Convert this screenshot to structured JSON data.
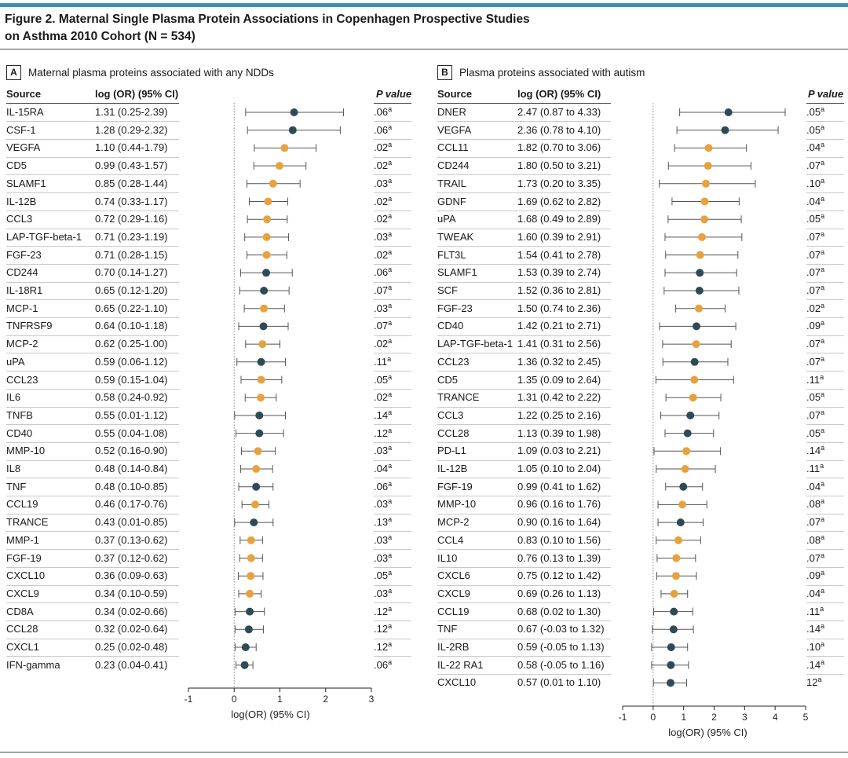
{
  "figure": {
    "title_line1": "Figure 2. Maternal Single Plasma Protein Associations in Copenhagen Prospective Studies",
    "title_line2": "on Asthma 2010 Cohort (N = 534)"
  },
  "colors": {
    "accent_bar": "#3d8fb8",
    "dot_dark": "#2e4a57",
    "dot_orange": "#e8a13c",
    "whisker": "#555555",
    "zero_line": "#888888"
  },
  "chart_data": [
    {
      "type": "forest",
      "panel": "A",
      "title": "Maternal plasma proteins associated with any NDDs",
      "col_source": "Source",
      "col_estimate": "log (OR) (95% CI)",
      "col_p": "P value",
      "xlabel": "log(OR) (95% CI)",
      "xlim": [
        -1,
        3
      ],
      "xticks": [
        -1,
        0,
        1,
        2,
        3
      ],
      "rows": [
        {
          "source": "IL-15RA",
          "ci_text": "1.31 (0.25-2.39)",
          "est": 1.31,
          "lo": 0.25,
          "hi": 2.39,
          "p": ".06",
          "sup": "a",
          "color": "dark"
        },
        {
          "source": "CSF-1",
          "ci_text": "1.28 (0.29-2.32)",
          "est": 1.28,
          "lo": 0.29,
          "hi": 2.32,
          "p": ".06",
          "sup": "a",
          "color": "dark"
        },
        {
          "source": "VEGFA",
          "ci_text": "1.10 (0.44-1.79)",
          "est": 1.1,
          "lo": 0.44,
          "hi": 1.79,
          "p": ".02",
          "sup": "a",
          "color": "orange"
        },
        {
          "source": "CD5",
          "ci_text": "0.99 (0.43-1.57)",
          "est": 0.99,
          "lo": 0.43,
          "hi": 1.57,
          "p": ".02",
          "sup": "a",
          "color": "orange"
        },
        {
          "source": "SLAMF1",
          "ci_text": "0.85 (0.28-1.44)",
          "est": 0.85,
          "lo": 0.28,
          "hi": 1.44,
          "p": ".03",
          "sup": "a",
          "color": "orange"
        },
        {
          "source": "IL-12B",
          "ci_text": "0.74 (0.33-1.17)",
          "est": 0.74,
          "lo": 0.33,
          "hi": 1.17,
          "p": ".02",
          "sup": "a",
          "color": "orange"
        },
        {
          "source": "CCL3",
          "ci_text": "0.72 (0.29-1.16)",
          "est": 0.72,
          "lo": 0.29,
          "hi": 1.16,
          "p": ".02",
          "sup": "a",
          "color": "orange"
        },
        {
          "source": "LAP-TGF-beta-1",
          "ci_text": "0.71 (0.23-1.19)",
          "est": 0.71,
          "lo": 0.23,
          "hi": 1.19,
          "p": ".03",
          "sup": "a",
          "color": "orange"
        },
        {
          "source": "FGF-23",
          "ci_text": "0.71 (0.28-1.15)",
          "est": 0.71,
          "lo": 0.28,
          "hi": 1.15,
          "p": ".02",
          "sup": "a",
          "color": "orange"
        },
        {
          "source": "CD244",
          "ci_text": "0.70 (0.14-1.27)",
          "est": 0.7,
          "lo": 0.14,
          "hi": 1.27,
          "p": ".06",
          "sup": "a",
          "color": "dark"
        },
        {
          "source": "IL-18R1",
          "ci_text": "0.65 (0.12-1.20)",
          "est": 0.65,
          "lo": 0.12,
          "hi": 1.2,
          "p": ".07",
          "sup": "a",
          "color": "dark"
        },
        {
          "source": "MCP-1",
          "ci_text": "0.65 (0.22-1.10)",
          "est": 0.65,
          "lo": 0.22,
          "hi": 1.1,
          "p": ".03",
          "sup": "a",
          "color": "orange"
        },
        {
          "source": "TNFRSF9",
          "ci_text": "0.64 (0.10-1.18)",
          "est": 0.64,
          "lo": 0.1,
          "hi": 1.18,
          "p": ".07",
          "sup": "a",
          "color": "dark"
        },
        {
          "source": "MCP-2",
          "ci_text": "0.62 (0.25-1.00)",
          "est": 0.62,
          "lo": 0.25,
          "hi": 1.0,
          "p": ".02",
          "sup": "a",
          "color": "orange"
        },
        {
          "source": "uPA",
          "ci_text": "0.59 (0.06-1.12)",
          "est": 0.59,
          "lo": 0.06,
          "hi": 1.12,
          "p": ".11",
          "sup": "a",
          "color": "dark"
        },
        {
          "source": "CCL23",
          "ci_text": "0.59 (0.15-1.04)",
          "est": 0.59,
          "lo": 0.15,
          "hi": 1.04,
          "p": ".05",
          "sup": "a",
          "color": "orange"
        },
        {
          "source": "IL6",
          "ci_text": "0.58 (0.24-0.92)",
          "est": 0.58,
          "lo": 0.24,
          "hi": 0.92,
          "p": ".02",
          "sup": "a",
          "color": "orange"
        },
        {
          "source": "TNFB",
          "ci_text": "0.55 (0.01-1.12)",
          "est": 0.55,
          "lo": 0.01,
          "hi": 1.12,
          "p": ".14",
          "sup": "a",
          "color": "dark"
        },
        {
          "source": "CD40",
          "ci_text": "0.55 (0.04-1.08)",
          "est": 0.55,
          "lo": 0.04,
          "hi": 1.08,
          "p": ".12",
          "sup": "a",
          "color": "dark"
        },
        {
          "source": "MMP-10",
          "ci_text": "0.52 (0.16-0.90)",
          "est": 0.52,
          "lo": 0.16,
          "hi": 0.9,
          "p": ".03",
          "sup": "a",
          "color": "orange"
        },
        {
          "source": "IL8",
          "ci_text": "0.48 (0.14-0.84)",
          "est": 0.48,
          "lo": 0.14,
          "hi": 0.84,
          "p": ".04",
          "sup": "a",
          "color": "orange"
        },
        {
          "source": "TNF",
          "ci_text": "0.48 (0.10-0.85)",
          "est": 0.48,
          "lo": 0.1,
          "hi": 0.85,
          "p": ".06",
          "sup": "a",
          "color": "dark"
        },
        {
          "source": "CCL19",
          "ci_text": "0.46 (0.17-0.76)",
          "est": 0.46,
          "lo": 0.17,
          "hi": 0.76,
          "p": ".03",
          "sup": "a",
          "color": "orange"
        },
        {
          "source": "TRANCE",
          "ci_text": "0.43 (0.01-0.85)",
          "est": 0.43,
          "lo": 0.01,
          "hi": 0.85,
          "p": ".13",
          "sup": "a",
          "color": "dark"
        },
        {
          "source": "MMP-1",
          "ci_text": "0.37 (0.13-0.62)",
          "est": 0.37,
          "lo": 0.13,
          "hi": 0.62,
          "p": ".03",
          "sup": "a",
          "color": "orange"
        },
        {
          "source": "FGF-19",
          "ci_text": "0.37 (0.12-0.62)",
          "est": 0.37,
          "lo": 0.12,
          "hi": 0.62,
          "p": ".03",
          "sup": "a",
          "color": "orange"
        },
        {
          "source": "CXCL10",
          "ci_text": "0.36 (0.09-0.63)",
          "est": 0.36,
          "lo": 0.09,
          "hi": 0.63,
          "p": ".05",
          "sup": "a",
          "color": "orange"
        },
        {
          "source": "CXCL9",
          "ci_text": "0.34 (0.10-0.59)",
          "est": 0.34,
          "lo": 0.1,
          "hi": 0.59,
          "p": ".03",
          "sup": "a",
          "color": "orange"
        },
        {
          "source": "CD8A",
          "ci_text": "0.34 (0.02-0.66)",
          "est": 0.34,
          "lo": 0.02,
          "hi": 0.66,
          "p": ".12",
          "sup": "a",
          "color": "dark"
        },
        {
          "source": "CCL28",
          "ci_text": "0.32 (0.02-0.64)",
          "est": 0.32,
          "lo": 0.02,
          "hi": 0.64,
          "p": ".12",
          "sup": "a",
          "color": "dark"
        },
        {
          "source": "CXCL1",
          "ci_text": "0.25 (0.02-0.48)",
          "est": 0.25,
          "lo": 0.02,
          "hi": 0.48,
          "p": ".12",
          "sup": "a",
          "color": "dark"
        },
        {
          "source": "IFN-gamma",
          "ci_text": "0.23 (0.04-0.41)",
          "est": 0.23,
          "lo": 0.04,
          "hi": 0.41,
          "p": ".06",
          "sup": "a",
          "color": "dark"
        }
      ]
    },
    {
      "type": "forest",
      "panel": "B",
      "title": "Plasma proteins associated with autism",
      "col_source": "Source",
      "col_estimate": "log (OR) (95% CI)",
      "col_p": "P value",
      "xlabel": "log(OR) (95% CI)",
      "xlim": [
        -1,
        5
      ],
      "xticks": [
        -1,
        0,
        1,
        2,
        3,
        4,
        5
      ],
      "rows": [
        {
          "source": "DNER",
          "ci_text": "2.47 (0.87 to 4.33)",
          "est": 2.47,
          "lo": 0.87,
          "hi": 4.33,
          "p": ".05",
          "sup": "a",
          "color": "dark"
        },
        {
          "source": "VEGFA",
          "ci_text": "2.36 (0.78 to 4.10)",
          "est": 2.36,
          "lo": 0.78,
          "hi": 4.1,
          "p": ".05",
          "sup": "a",
          "color": "dark"
        },
        {
          "source": "CCL11",
          "ci_text": "1.82 (0.70 to 3.06)",
          "est": 1.82,
          "lo": 0.7,
          "hi": 3.06,
          "p": ".04",
          "sup": "a",
          "color": "orange"
        },
        {
          "source": "CD244",
          "ci_text": "1.80 (0.50 to 3.21)",
          "est": 1.8,
          "lo": 0.5,
          "hi": 3.21,
          "p": ".07",
          "sup": "a",
          "color": "orange"
        },
        {
          "source": "TRAIL",
          "ci_text": "1.73 (0.20 to 3.35)",
          "est": 1.73,
          "lo": 0.2,
          "hi": 3.35,
          "p": ".10",
          "sup": "a",
          "color": "orange"
        },
        {
          "source": "GDNF",
          "ci_text": "1.69 (0.62 to 2.82)",
          "est": 1.69,
          "lo": 0.62,
          "hi": 2.82,
          "p": ".04",
          "sup": "a",
          "color": "orange"
        },
        {
          "source": "uPA",
          "ci_text": "1.68 (0.49 to 2.89)",
          "est": 1.68,
          "lo": 0.49,
          "hi": 2.89,
          "p": ".05",
          "sup": "a",
          "color": "orange"
        },
        {
          "source": "TWEAK",
          "ci_text": "1.60 (0.39 to 2.91)",
          "est": 1.6,
          "lo": 0.39,
          "hi": 2.91,
          "p": ".07",
          "sup": "a",
          "color": "orange"
        },
        {
          "source": "FLT3L",
          "ci_text": "1.54 (0.41 to 2.78)",
          "est": 1.54,
          "lo": 0.41,
          "hi": 2.78,
          "p": ".07",
          "sup": "a",
          "color": "orange"
        },
        {
          "source": "SLAMF1",
          "ci_text": "1.53 (0.39 to 2.74)",
          "est": 1.53,
          "lo": 0.39,
          "hi": 2.74,
          "p": ".07",
          "sup": "a",
          "color": "dark"
        },
        {
          "source": "SCF",
          "ci_text": "1.52 (0.36 to 2.81)",
          "est": 1.52,
          "lo": 0.36,
          "hi": 2.81,
          "p": ".07",
          "sup": "a",
          "color": "dark"
        },
        {
          "source": "FGF-23",
          "ci_text": "1.50 (0.74 to 2.36)",
          "est": 1.5,
          "lo": 0.74,
          "hi": 2.36,
          "p": ".02",
          "sup": "a",
          "color": "orange"
        },
        {
          "source": "CD40",
          "ci_text": "1.42 (0.21 to 2.71)",
          "est": 1.42,
          "lo": 0.21,
          "hi": 2.71,
          "p": ".09",
          "sup": "a",
          "color": "dark"
        },
        {
          "source": "LAP-TGF-beta-1",
          "ci_text": "1.41 (0.31 to 2.56)",
          "est": 1.41,
          "lo": 0.31,
          "hi": 2.56,
          "p": ".07",
          "sup": "a",
          "color": "orange"
        },
        {
          "source": "CCL23",
          "ci_text": "1.36 (0.32 to 2.45)",
          "est": 1.36,
          "lo": 0.32,
          "hi": 2.45,
          "p": ".07",
          "sup": "a",
          "color": "dark"
        },
        {
          "source": "CD5",
          "ci_text": "1.35 (0.09 to 2.64)",
          "est": 1.35,
          "lo": 0.09,
          "hi": 2.64,
          "p": ".11",
          "sup": "a",
          "color": "orange"
        },
        {
          "source": "TRANCE",
          "ci_text": "1.31 (0.42 to 2.22)",
          "est": 1.31,
          "lo": 0.42,
          "hi": 2.22,
          "p": ".05",
          "sup": "a",
          "color": "orange"
        },
        {
          "source": "CCL3",
          "ci_text": "1.22 (0.25 to 2.16)",
          "est": 1.22,
          "lo": 0.25,
          "hi": 2.16,
          "p": ".07",
          "sup": "a",
          "color": "dark"
        },
        {
          "source": "CCL28",
          "ci_text": "1.13 (0.39 to 1.98)",
          "est": 1.13,
          "lo": 0.39,
          "hi": 1.98,
          "p": ".05",
          "sup": "a",
          "color": "dark"
        },
        {
          "source": "PD-L1",
          "ci_text": "1.09 (0.03 to 2.21)",
          "est": 1.09,
          "lo": 0.03,
          "hi": 2.21,
          "p": ".14",
          "sup": "a",
          "color": "orange"
        },
        {
          "source": "IL-12B",
          "ci_text": "1.05 (0.10 to 2.04)",
          "est": 1.05,
          "lo": 0.1,
          "hi": 2.04,
          "p": ".11",
          "sup": "a",
          "color": "orange"
        },
        {
          "source": "FGF-19",
          "ci_text": "0.99 (0.41 to 1.62)",
          "est": 0.99,
          "lo": 0.41,
          "hi": 1.62,
          "p": ".04",
          "sup": "a",
          "color": "dark"
        },
        {
          "source": "MMP-10",
          "ci_text": "0.96 (0.16 to 1.76)",
          "est": 0.96,
          "lo": 0.16,
          "hi": 1.76,
          "p": ".08",
          "sup": "a",
          "color": "orange"
        },
        {
          "source": "MCP-2",
          "ci_text": "0.90 (0.16 to 1.64)",
          "est": 0.9,
          "lo": 0.16,
          "hi": 1.64,
          "p": ".07",
          "sup": "a",
          "color": "dark"
        },
        {
          "source": "CCL4",
          "ci_text": "0.83 (0.10 to 1.56)",
          "est": 0.83,
          "lo": 0.1,
          "hi": 1.56,
          "p": ".08",
          "sup": "a",
          "color": "orange"
        },
        {
          "source": "IL10",
          "ci_text": "0.76 (0.13 to 1.39)",
          "est": 0.76,
          "lo": 0.13,
          "hi": 1.39,
          "p": ".07",
          "sup": "a",
          "color": "orange"
        },
        {
          "source": "CXCL6",
          "ci_text": "0.75 (0.12 to 1.42)",
          "est": 0.75,
          "lo": 0.12,
          "hi": 1.42,
          "p": ".09",
          "sup": "a",
          "color": "orange"
        },
        {
          "source": "CXCL9",
          "ci_text": "0.69 (0.26 to 1.13)",
          "est": 0.69,
          "lo": 0.26,
          "hi": 1.13,
          "p": ".04",
          "sup": "a",
          "color": "orange"
        },
        {
          "source": "CCL19",
          "ci_text": "0.68 (0.02 to 1.30)",
          "est": 0.68,
          "lo": 0.02,
          "hi": 1.3,
          "p": ".11",
          "sup": "a",
          "color": "dark"
        },
        {
          "source": "TNF",
          "ci_text": "0.67 (-0.03 to 1.32)",
          "est": 0.67,
          "lo": -0.03,
          "hi": 1.32,
          "p": ".14",
          "sup": "a",
          "color": "dark"
        },
        {
          "source": "IL-2RB",
          "ci_text": "0.59 (-0.05 to 1.13)",
          "est": 0.59,
          "lo": -0.05,
          "hi": 1.13,
          "p": ".10",
          "sup": "a",
          "color": "dark"
        },
        {
          "source": "IL-22 RA1",
          "ci_text": "0.58 (-0.05 to 1.16)",
          "est": 0.58,
          "lo": -0.05,
          "hi": 1.16,
          "p": ".14",
          "sup": "a",
          "color": "dark"
        },
        {
          "source": "CXCL10",
          "ci_text": "0.57 (0.01 to 1.10)",
          "est": 0.57,
          "lo": 0.01,
          "hi": 1.1,
          "p": "12",
          "sup": "a",
          "color": "dark"
        }
      ]
    }
  ]
}
